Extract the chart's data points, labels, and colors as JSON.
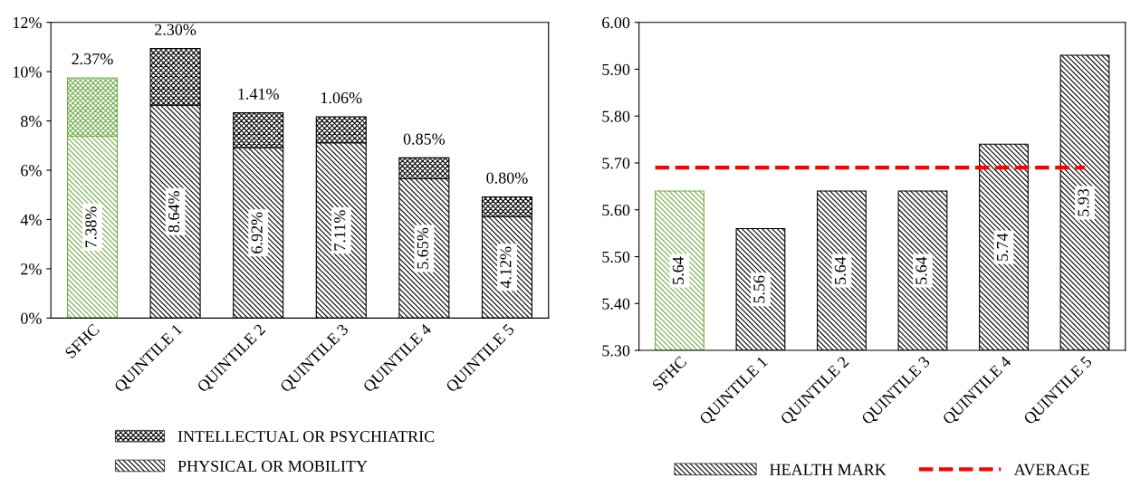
{
  "chart_data": [
    {
      "type": "bar",
      "stacked": true,
      "categories": [
        "SFHC",
        "QUINTILE 1",
        "QUINTILE 2",
        "QUINTILE 3",
        "QUINTILE 4",
        "QUINTILE 5"
      ],
      "series": [
        {
          "name": "PHYSICAL OR MOBILITY",
          "color": "#000000",
          "colors": [
            "#70ad47",
            "#000000",
            "#000000",
            "#000000",
            "#000000",
            "#000000"
          ],
          "values": [
            7.38,
            8.64,
            6.92,
            7.11,
            5.65,
            4.12
          ],
          "value_labels": [
            "7.38%",
            "8.64%",
            "6.92%",
            "7.11%",
            "5.65%",
            "4.12%"
          ]
        },
        {
          "name": "INTELLECTUAL OR PSYCHIATRIC",
          "color": "#000000",
          "colors": [
            "#70ad47",
            "#000000",
            "#000000",
            "#000000",
            "#000000",
            "#000000"
          ],
          "values": [
            2.37,
            2.3,
            1.41,
            1.06,
            0.85,
            0.8
          ],
          "value_labels": [
            "2.37%",
            "2.30%",
            "1.41%",
            "1.06%",
            "0.85%",
            "0.80%"
          ]
        }
      ],
      "ylim": [
        0,
        12
      ],
      "yticks": [
        {
          "value": 0,
          "label": "0%"
        },
        {
          "value": 2,
          "label": "2%"
        },
        {
          "value": 4,
          "label": "4%"
        },
        {
          "value": 6,
          "label": "6%"
        },
        {
          "value": 8,
          "label": "8%"
        },
        {
          "value": 10,
          "label": "10%"
        },
        {
          "value": 12,
          "label": "12%"
        }
      ],
      "legend": "bottom"
    },
    {
      "type": "bar",
      "categories": [
        "SFHC",
        "QUINTILE 1",
        "QUINTILE 2",
        "QUINTILE 3",
        "QUINTILE 4",
        "QUINTILE 5"
      ],
      "series": [
        {
          "name": "HEALTH MARK",
          "color": "#000000",
          "colors": [
            "#70ad47",
            "#000000",
            "#000000",
            "#000000",
            "#000000",
            "#000000"
          ],
          "values": [
            5.64,
            5.56,
            5.64,
            5.64,
            5.74,
            5.93
          ]
        }
      ],
      "data_labels": true,
      "ref_lines": [
        {
          "axis": "y",
          "value": 5.69,
          "label": "AVERAGE",
          "color": "#ff0000",
          "line_style": "dashed"
        }
      ],
      "ylim": [
        5.3,
        6.0
      ],
      "yticks": [
        {
          "value": 5.3,
          "label": "5.30"
        },
        {
          "value": 5.4,
          "label": "5.40"
        },
        {
          "value": 5.5,
          "label": "5.50"
        },
        {
          "value": 5.6,
          "label": "5.60"
        },
        {
          "value": 5.7,
          "label": "5.70"
        },
        {
          "value": 5.8,
          "label": "5.80"
        },
        {
          "value": 5.9,
          "label": "5.90"
        },
        {
          "value": 6.0,
          "label": "6.00"
        }
      ],
      "legend": "bottom"
    }
  ]
}
